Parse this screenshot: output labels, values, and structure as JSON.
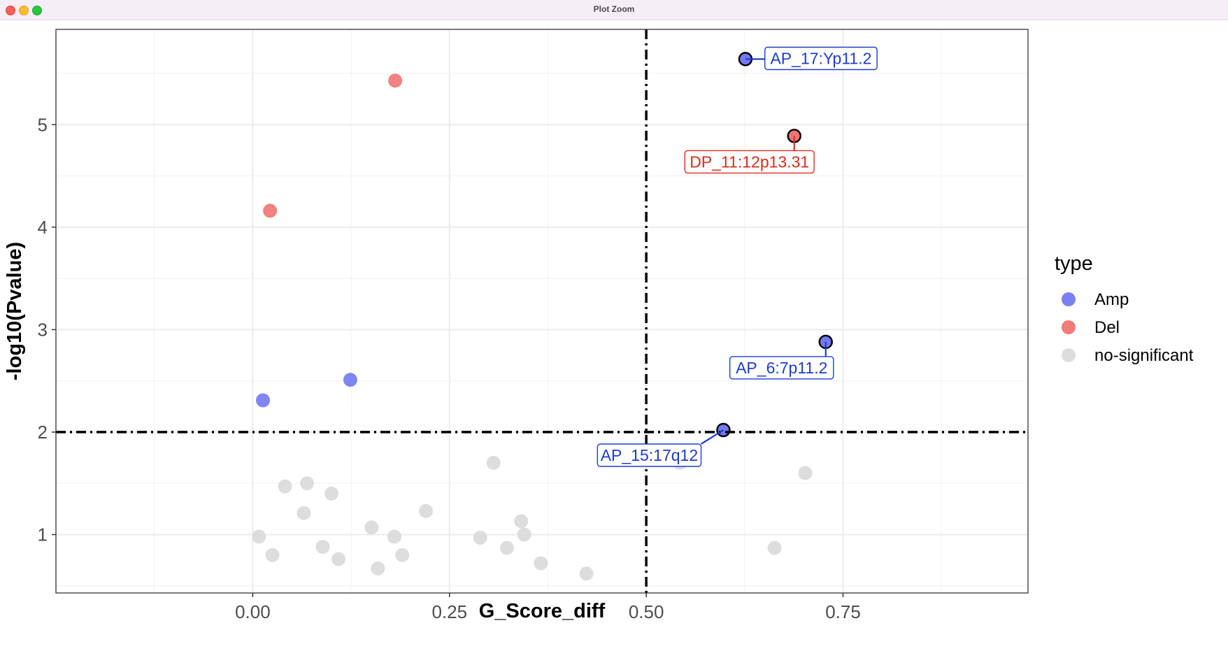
{
  "window": {
    "title": "Plot Zoom"
  },
  "chart_data": {
    "type": "scatter",
    "title": "",
    "xlabel": "G_Score_diff",
    "ylabel": "-log10(Pvalue)",
    "xlim": [
      -0.25,
      0.985
    ],
    "ylim": [
      0.43,
      5.93
    ],
    "x_ticks": [
      0.0,
      0.25,
      0.5,
      0.75
    ],
    "x_tick_labels": [
      "0.00",
      "0.25",
      "0.50",
      "0.75"
    ],
    "y_ticks": [
      1,
      2,
      3,
      4,
      5
    ],
    "y_tick_labels": [
      "1",
      "2",
      "3",
      "4",
      "5"
    ],
    "grid": true,
    "thresholds": {
      "x": 0.5,
      "y": 2
    },
    "legend": {
      "title": "type",
      "position": "right",
      "entries": [
        {
          "name": "Amp",
          "color": "#6b72f0"
        },
        {
          "name": "Del",
          "color": "#f06b6b"
        },
        {
          "name": "no-significant",
          "color": "#d9d9d9"
        }
      ]
    },
    "series": [
      {
        "name": "Amp",
        "color": "#6b72f0",
        "points": [
          {
            "x": 0.013,
            "y": 2.31
          },
          {
            "x": 0.124,
            "y": 2.51
          },
          {
            "x": 0.626,
            "y": 5.64,
            "label": "AP_17:Yp11.2"
          },
          {
            "x": 0.728,
            "y": 2.88,
            "label": "AP_6:7p11.2"
          },
          {
            "x": 0.598,
            "y": 2.02,
            "label": "AP_15:17q12"
          }
        ]
      },
      {
        "name": "Del",
        "color": "#f06b6b",
        "points": [
          {
            "x": 0.022,
            "y": 4.16
          },
          {
            "x": 0.181,
            "y": 5.43
          },
          {
            "x": 0.688,
            "y": 4.89,
            "label": "DP_11:12p13.31"
          }
        ]
      },
      {
        "name": "no-significant",
        "color": "#d9d9d9",
        "points": [
          {
            "x": 0.008,
            "y": 0.98
          },
          {
            "x": 0.025,
            "y": 0.8
          },
          {
            "x": 0.041,
            "y": 1.47
          },
          {
            "x": 0.065,
            "y": 1.21
          },
          {
            "x": 0.069,
            "y": 1.5
          },
          {
            "x": 0.089,
            "y": 0.88
          },
          {
            "x": 0.1,
            "y": 1.4
          },
          {
            "x": 0.109,
            "y": 0.76
          },
          {
            "x": 0.151,
            "y": 1.07
          },
          {
            "x": 0.159,
            "y": 0.67
          },
          {
            "x": 0.18,
            "y": 0.98
          },
          {
            "x": 0.19,
            "y": 0.8
          },
          {
            "x": 0.22,
            "y": 1.23
          },
          {
            "x": 0.289,
            "y": 0.97
          },
          {
            "x": 0.306,
            "y": 1.7
          },
          {
            "x": 0.323,
            "y": 0.87
          },
          {
            "x": 0.341,
            "y": 1.13
          },
          {
            "x": 0.345,
            "y": 1.0
          },
          {
            "x": 0.366,
            "y": 0.72
          },
          {
            "x": 0.424,
            "y": 0.62
          },
          {
            "x": 0.543,
            "y": 1.7
          },
          {
            "x": 0.663,
            "y": 0.87
          },
          {
            "x": 0.702,
            "y": 1.6
          }
        ]
      }
    ]
  }
}
